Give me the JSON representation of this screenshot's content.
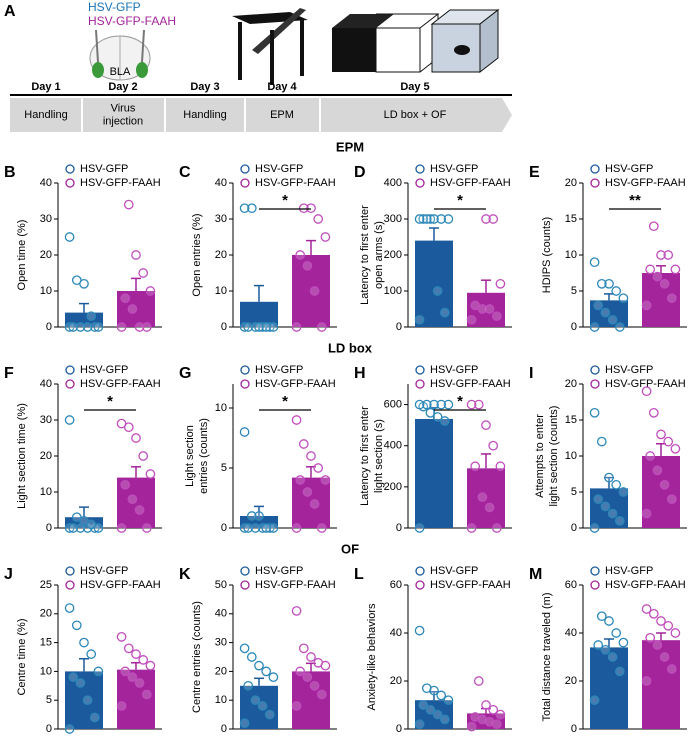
{
  "timeline": {
    "panel": "A",
    "groups": [
      "HSV-GFP",
      "HSV-GFP-FAAH"
    ],
    "region": "BLA",
    "days": [
      "Day 1",
      "Day 2",
      "Day 3",
      "Day 4",
      "Day 5"
    ],
    "stages": [
      [
        "Handling"
      ],
      [
        "Virus",
        "injection"
      ],
      [
        "Handling"
      ],
      [
        "EPM"
      ],
      [
        "LD box + OF"
      ]
    ]
  },
  "sections": [
    "EPM",
    "LD box",
    "OF"
  ],
  "chart_data": [
    {
      "type": "bar",
      "panel": "B",
      "ylabel": [
        "Open time (%)"
      ],
      "ylim": [
        0,
        40
      ],
      "yticks": [
        0,
        10,
        20,
        30,
        40
      ],
      "series": [
        {
          "name": "HSV-GFP",
          "color": "#1b5a9c",
          "value": 4,
          "error": 2.5,
          "points": [
            0,
            0,
            0,
            0,
            0,
            0,
            3,
            12,
            13,
            25
          ]
        },
        {
          "name": "HSV-GFP-FAAH",
          "color": "#a3249b",
          "value": 10,
          "error": 3.5,
          "points": [
            0,
            0,
            0,
            5,
            8,
            10,
            15,
            20,
            34
          ]
        }
      ]
    },
    {
      "type": "bar",
      "panel": "C",
      "ylabel": [
        "Open entries (%)"
      ],
      "ylim": [
        0,
        40
      ],
      "yticks": [
        0,
        10,
        20,
        30,
        40
      ],
      "annotation": "*",
      "series": [
        {
          "name": "HSV-GFP",
          "color": "#1b5a9c",
          "value": 7,
          "error": 4.5,
          "points": [
            0,
            0,
            0,
            0,
            0,
            0,
            0,
            0,
            33,
            33
          ]
        },
        {
          "name": "HSV-GFP-FAAH",
          "color": "#a3249b",
          "value": 20,
          "error": 4,
          "points": [
            0,
            0,
            10,
            17,
            20,
            25,
            30,
            33,
            33
          ]
        }
      ]
    },
    {
      "type": "bar",
      "panel": "D",
      "ylabel": [
        "Latency to first enter",
        "open arms (s)"
      ],
      "ylim": [
        0,
        400
      ],
      "yticks": [
        0,
        100,
        200,
        300,
        400
      ],
      "annotation": "*",
      "series": [
        {
          "name": "HSV-GFP",
          "color": "#1b5a9c",
          "value": 240,
          "error": 35,
          "points": [
            20,
            40,
            100,
            300,
            300,
            300,
            300,
            300,
            300,
            300
          ]
        },
        {
          "name": "HSV-GFP-FAAH",
          "color": "#a3249b",
          "value": 95,
          "error": 35,
          "points": [
            20,
            30,
            50,
            50,
            60,
            120,
            300,
            300
          ]
        }
      ]
    },
    {
      "type": "bar",
      "panel": "E",
      "ylabel": [
        "HDIPS (counts)"
      ],
      "ylim": [
        0,
        20
      ],
      "yticks": [
        0,
        5,
        10,
        15,
        20
      ],
      "annotation": "**",
      "series": [
        {
          "name": "HSV-GFP",
          "color": "#1b5a9c",
          "value": 3.7,
          "error": 0.9,
          "points": [
            0,
            0,
            1,
            2,
            3,
            4,
            5,
            6,
            6,
            9
          ]
        },
        {
          "name": "HSV-GFP-FAAH",
          "color": "#a3249b",
          "value": 7.5,
          "error": 1,
          "points": [
            3,
            4,
            6,
            7,
            8,
            8,
            10,
            10,
            14
          ]
        }
      ]
    },
    {
      "type": "bar",
      "panel": "F",
      "ylabel": [
        "Light section time (%)"
      ],
      "ylim": [
        0,
        40
      ],
      "yticks": [
        0,
        10,
        20,
        30,
        40
      ],
      "annotation": "*",
      "series": [
        {
          "name": "HSV-GFP",
          "color": "#1b5a9c",
          "value": 3,
          "error": 2.8,
          "points": [
            0,
            0,
            0,
            0,
            0,
            0,
            1,
            2,
            3,
            30
          ]
        },
        {
          "name": "HSV-GFP-FAAH",
          "color": "#a3249b",
          "value": 14,
          "error": 3,
          "points": [
            0,
            0,
            5,
            8,
            12,
            15,
            20,
            25,
            28,
            29
          ]
        }
      ]
    },
    {
      "type": "bar",
      "panel": "G",
      "ylabel": [
        "Light section",
        "entries (counts)"
      ],
      "ylim": [
        0,
        12
      ],
      "yticks": [
        0,
        5,
        10
      ],
      "annotation": "*",
      "series": [
        {
          "name": "HSV-GFP",
          "color": "#1b5a9c",
          "value": 1,
          "error": 0.8,
          "points": [
            0,
            0,
            0,
            0,
            0,
            0,
            0,
            1,
            1,
            8
          ]
        },
        {
          "name": "HSV-GFP-FAAH",
          "color": "#a3249b",
          "value": 4.2,
          "error": 0.9,
          "points": [
            0,
            0,
            2,
            3,
            4,
            4,
            5,
            6,
            7,
            9
          ]
        }
      ]
    },
    {
      "type": "bar",
      "panel": "H",
      "ylabel": [
        "Latency to first enter",
        "light section (s)"
      ],
      "ylim": [
        0,
        700
      ],
      "yticks": [
        0,
        200,
        400,
        600
      ],
      "annotation": "*",
      "series": [
        {
          "name": "HSV-GFP",
          "color": "#1b5a9c",
          "value": 530,
          "error": 55,
          "points": [
            0,
            520,
            540,
            560,
            590,
            600,
            600,
            600,
            600,
            600
          ]
        },
        {
          "name": "HSV-GFP-FAAH",
          "color": "#a3249b",
          "value": 290,
          "error": 70,
          "points": [
            0,
            0,
            100,
            150,
            300,
            300,
            400,
            500,
            600,
            600
          ]
        }
      ]
    },
    {
      "type": "bar",
      "panel": "I",
      "ylabel": [
        "Attempts to enter",
        "light section (counts)"
      ],
      "ylim": [
        0,
        20
      ],
      "yticks": [
        0,
        5,
        10,
        15,
        20
      ],
      "series": [
        {
          "name": "HSV-GFP",
          "color": "#1b5a9c",
          "value": 5.5,
          "error": 1.5,
          "points": [
            0,
            1,
            2,
            3,
            4,
            5,
            6,
            7,
            12,
            16
          ]
        },
        {
          "name": "HSV-GFP-FAAH",
          "color": "#a3249b",
          "value": 10,
          "error": 1.7,
          "points": [
            2,
            4,
            6,
            8,
            10,
            11,
            12,
            13,
            16,
            19
          ]
        }
      ]
    },
    {
      "type": "bar",
      "panel": "J",
      "ylabel": [
        "Centre time (%)"
      ],
      "ylim": [
        0,
        25
      ],
      "yticks": [
        0,
        5,
        10,
        15,
        20,
        25
      ],
      "series": [
        {
          "name": "HSV-GFP",
          "color": "#1b5a9c",
          "value": 10,
          "error": 2.2,
          "points": [
            0,
            2,
            5,
            8,
            9,
            10,
            13,
            15,
            18,
            21
          ]
        },
        {
          "name": "HSV-GFP-FAAH",
          "color": "#a3249b",
          "value": 10.3,
          "error": 1.2,
          "points": [
            4,
            6,
            8,
            9,
            10,
            11,
            12,
            13,
            14,
            16
          ]
        }
      ]
    },
    {
      "type": "bar",
      "panel": "K",
      "ylabel": [
        "Centre entries (counts)"
      ],
      "ylim": [
        0,
        50
      ],
      "yticks": [
        0,
        10,
        20,
        30,
        40,
        50
      ],
      "series": [
        {
          "name": "HSV-GFP",
          "color": "#1b5a9c",
          "value": 15,
          "error": 2.6,
          "points": [
            2,
            5,
            8,
            10,
            15,
            18,
            20,
            22,
            25,
            28
          ]
        },
        {
          "name": "HSV-GFP-FAAH",
          "color": "#a3249b",
          "value": 20,
          "error": 2.8,
          "points": [
            8,
            12,
            15,
            18,
            20,
            22,
            23,
            25,
            28,
            41
          ]
        }
      ]
    },
    {
      "type": "bar",
      "panel": "L",
      "ylabel": [
        "Anxiety-like behaviors"
      ],
      "ylim": [
        0,
        60
      ],
      "yticks": [
        0,
        20,
        40,
        60
      ],
      "series": [
        {
          "name": "HSV-GFP",
          "color": "#1b5a9c",
          "value": 12,
          "error": 3.5,
          "points": [
            2,
            4,
            6,
            8,
            10,
            12,
            14,
            16,
            17,
            41
          ]
        },
        {
          "name": "HSV-GFP-FAAH",
          "color": "#a3249b",
          "value": 6.5,
          "error": 2,
          "points": [
            1,
            2,
            3,
            4,
            5,
            6,
            8,
            10,
            20
          ]
        }
      ]
    },
    {
      "type": "bar",
      "panel": "M",
      "ylabel": [
        "Total distance traveled (m)"
      ],
      "ylim": [
        0,
        60
      ],
      "yticks": [
        0,
        20,
        40,
        60
      ],
      "series": [
        {
          "name": "HSV-GFP",
          "color": "#1b5a9c",
          "value": 34,
          "error": 3.5,
          "points": [
            12,
            24,
            30,
            33,
            35,
            36,
            40,
            45,
            47
          ]
        },
        {
          "name": "HSV-GFP-FAAH",
          "color": "#a3249b",
          "value": 37,
          "error": 3,
          "points": [
            20,
            25,
            30,
            35,
            38,
            40,
            43,
            45,
            48,
            50
          ]
        }
      ]
    }
  ]
}
